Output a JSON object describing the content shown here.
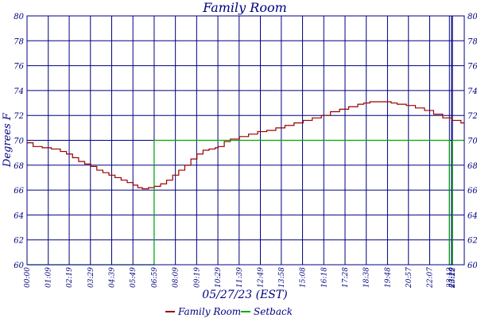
{
  "chart_data": {
    "type": "line",
    "title": "Family Room",
    "xlabel": "05/27/23 (EST)",
    "ylabel": "Degrees F",
    "ylim": [
      60,
      80
    ],
    "yticks": [
      60,
      62,
      64,
      66,
      68,
      70,
      72,
      74,
      76,
      78,
      80
    ],
    "x_unit": "minutes",
    "x_range": [
      0,
      1441
    ],
    "xticks": [
      {
        "minute": 0,
        "label": "00:00"
      },
      {
        "minute": 70,
        "label": "01:09"
      },
      {
        "minute": 139,
        "label": "02:19"
      },
      {
        "minute": 209,
        "label": "03:29"
      },
      {
        "minute": 279,
        "label": "04:39"
      },
      {
        "minute": 349,
        "label": "05:49"
      },
      {
        "minute": 419,
        "label": "06:59"
      },
      {
        "minute": 489,
        "label": "08:09"
      },
      {
        "minute": 559,
        "label": "09:19"
      },
      {
        "minute": 629,
        "label": "10:29"
      },
      {
        "minute": 699,
        "label": "11:39"
      },
      {
        "minute": 769,
        "label": "12:49"
      },
      {
        "minute": 838,
        "label": "13:58"
      },
      {
        "minute": 908,
        "label": "15:08"
      },
      {
        "minute": 978,
        "label": "16:18"
      },
      {
        "minute": 1048,
        "label": "17:28"
      },
      {
        "minute": 1118,
        "label": "18:38"
      },
      {
        "minute": 1188,
        "label": "19:48"
      },
      {
        "minute": 1257,
        "label": "20:57"
      },
      {
        "minute": 1327,
        "label": "22:07"
      },
      {
        "minute": 1392,
        "label": "23:12"
      },
      {
        "minute": 1399,
        "label": "23:19"
      },
      {
        "minute": 1402,
        "label": "23:22"
      }
    ],
    "grid": true,
    "legend_position": "bottom",
    "series": [
      {
        "name": "Family Room",
        "color": "#990000",
        "points": [
          [
            0,
            69.8
          ],
          [
            20,
            69.5
          ],
          [
            50,
            69.4
          ],
          [
            80,
            69.3
          ],
          [
            110,
            69.1
          ],
          [
            130,
            68.9
          ],
          [
            150,
            68.6
          ],
          [
            170,
            68.3
          ],
          [
            190,
            68.1
          ],
          [
            210,
            67.9
          ],
          [
            230,
            67.6
          ],
          [
            250,
            67.4
          ],
          [
            270,
            67.2
          ],
          [
            290,
            67.0
          ],
          [
            310,
            66.8
          ],
          [
            330,
            66.6
          ],
          [
            350,
            66.4
          ],
          [
            365,
            66.2
          ],
          [
            380,
            66.1
          ],
          [
            400,
            66.2
          ],
          [
            420,
            66.3
          ],
          [
            440,
            66.5
          ],
          [
            460,
            66.8
          ],
          [
            480,
            67.2
          ],
          [
            500,
            67.6
          ],
          [
            520,
            68.0
          ],
          [
            540,
            68.5
          ],
          [
            560,
            68.9
          ],
          [
            580,
            69.2
          ],
          [
            600,
            69.3
          ],
          [
            620,
            69.4
          ],
          [
            630,
            69.5
          ],
          [
            650,
            69.9
          ],
          [
            670,
            70.1
          ],
          [
            700,
            70.3
          ],
          [
            730,
            70.5
          ],
          [
            760,
            70.7
          ],
          [
            790,
            70.8
          ],
          [
            820,
            71.0
          ],
          [
            850,
            71.2
          ],
          [
            880,
            71.4
          ],
          [
            910,
            71.6
          ],
          [
            940,
            71.8
          ],
          [
            970,
            72.0
          ],
          [
            1000,
            72.3
          ],
          [
            1030,
            72.5
          ],
          [
            1060,
            72.7
          ],
          [
            1090,
            72.9
          ],
          [
            1110,
            73.0
          ],
          [
            1130,
            73.1
          ],
          [
            1160,
            73.1
          ],
          [
            1180,
            73.1
          ],
          [
            1200,
            73.0
          ],
          [
            1220,
            72.9
          ],
          [
            1250,
            72.8
          ],
          [
            1280,
            72.6
          ],
          [
            1310,
            72.4
          ],
          [
            1340,
            72.1
          ],
          [
            1370,
            71.8
          ],
          [
            1400,
            71.6
          ],
          [
            1430,
            71.4
          ],
          [
            1441,
            71.4
          ]
        ]
      },
      {
        "name": "Setback",
        "color": "#00aa00",
        "points": [
          [
            0,
            60
          ],
          [
            419,
            60
          ],
          [
            419,
            70
          ],
          [
            1392,
            70
          ],
          [
            1392,
            60
          ],
          [
            1402,
            60
          ],
          [
            1402,
            70
          ],
          [
            1441,
            70
          ]
        ]
      }
    ]
  }
}
